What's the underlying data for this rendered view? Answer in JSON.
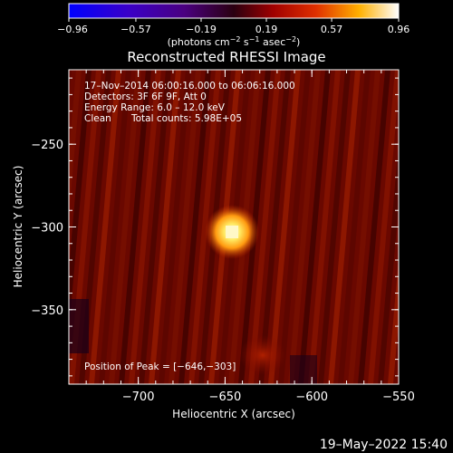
{
  "chart_data": {
    "type": "heatmap",
    "title": "Reconstructed RHESSI Image",
    "xlabel": "Heliocentric X (arcsec)",
    "ylabel": "Heliocentric Y (arcsec)",
    "xlim": [
      -740,
      -550
    ],
    "ylim": [
      -395,
      -205
    ],
    "x_ticks": [
      -700,
      -650,
      -600,
      -550
    ],
    "x_tick_labels": [
      "−700",
      "−650",
      "−600",
      "−550"
    ],
    "y_ticks": [
      -250,
      -300,
      -350
    ],
    "y_tick_labels": [
      "−250",
      "−300",
      "−350"
    ],
    "colorbar": {
      "min": -0.96,
      "max": 0.96,
      "ticks": [
        -0.96,
        -0.57,
        -0.19,
        0.19,
        0.57,
        0.96
      ],
      "tick_labels": [
        "−0.96",
        "−0.57",
        "−0.19",
        "0.19",
        "0.57",
        "0.96"
      ],
      "units_prefix": "(photons cm",
      "units_sup1": "−2",
      "units_mid1": " s",
      "units_sup2": "−1",
      "units_mid2": " asec",
      "units_sup3": "−2",
      "units_suffix": ")"
    },
    "annotations": {
      "line1": "17–Nov–2014 06:00:16.000 to 06:06:16.000",
      "line2": "Detectors: 3F 6F 9F, Att 0",
      "line3": "Energy Range: 6.0 – 12.0 keV",
      "line4_a": "Clean",
      "line4_b": "Total counts: 5.98E+05",
      "peak": "Position of Peak = [−646,−303]"
    },
    "peak": {
      "x": -646,
      "y": -303,
      "value": 0.96
    },
    "grid": false
  },
  "footer": {
    "timestamp": "19–May–2022 15:40"
  }
}
